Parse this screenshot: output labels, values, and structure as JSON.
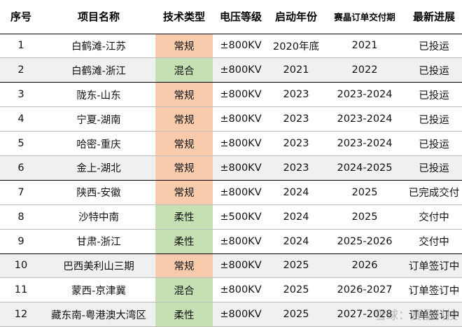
{
  "headers": [
    "序号",
    "项目名称",
    "技术类型",
    "电压等级",
    "启动年份",
    "赛晶订单交付期",
    "最新进展"
  ],
  "rows": [
    {
      "no": "1",
      "name": "白鹤滩-江苏",
      "tech": "常规",
      "voltage": "±800KV",
      "start": "2020年底",
      "delivery": "2021",
      "status": "已投运"
    },
    {
      "no": "2",
      "name": "白鹤滩-浙江",
      "tech": "混合",
      "voltage": "±800KV",
      "start": "2021",
      "delivery": "2022",
      "status": "已投运"
    },
    {
      "no": "3",
      "name": "陇东-山东",
      "tech": "常规",
      "voltage": "±800KV",
      "start": "2023",
      "delivery": "2023-2024",
      "status": "已投运"
    },
    {
      "no": "4",
      "name": "宁夏-湖南",
      "tech": "常规",
      "voltage": "±800KV",
      "start": "2023",
      "delivery": "2023-2024",
      "status": "已投运"
    },
    {
      "no": "5",
      "name": "哈密-重庆",
      "tech": "常规",
      "voltage": "±800KV",
      "start": "2023",
      "delivery": "2023-2024",
      "status": "已投运"
    },
    {
      "no": "6",
      "name": "金上-湖北",
      "tech": "常规",
      "voltage": "±800KV",
      "start": "2023",
      "delivery": "2024-2025",
      "status": "已投运"
    },
    {
      "no": "7",
      "name": "陕西-安徽",
      "tech": "常规",
      "voltage": "±800KV",
      "start": "2024",
      "delivery": "2025",
      "status": "已完成交付"
    },
    {
      "no": "8",
      "name": "沙特中南",
      "tech": "柔性",
      "voltage": "±500KV",
      "start": "2024",
      "delivery": "2025",
      "status": "交付中"
    },
    {
      "no": "9",
      "name": "甘肃-浙江",
      "tech": "柔性",
      "voltage": "±800KV",
      "start": "2024",
      "delivery": "2025-2026",
      "status": "交付中"
    },
    {
      "no": "10",
      "name": "巴西美利山三期",
      "tech": "常规",
      "voltage": "±800KV",
      "start": "2025",
      "delivery": "2026",
      "status": "订单签订中"
    },
    {
      "no": "11",
      "name": "蒙西-京津冀",
      "tech": "混合",
      "voltage": "±800KV",
      "start": "2025",
      "delivery": "2026-2027",
      "status": "订单签订中"
    },
    {
      "no": "12",
      "name": "藏东南-粤港澳大湾区",
      "tech": "柔性",
      "voltage": "±800KV",
      "start": "2025",
      "delivery": "2027-2028",
      "status": "订单签订中"
    }
  ],
  "watermark": "雪球：赛晶科技"
}
